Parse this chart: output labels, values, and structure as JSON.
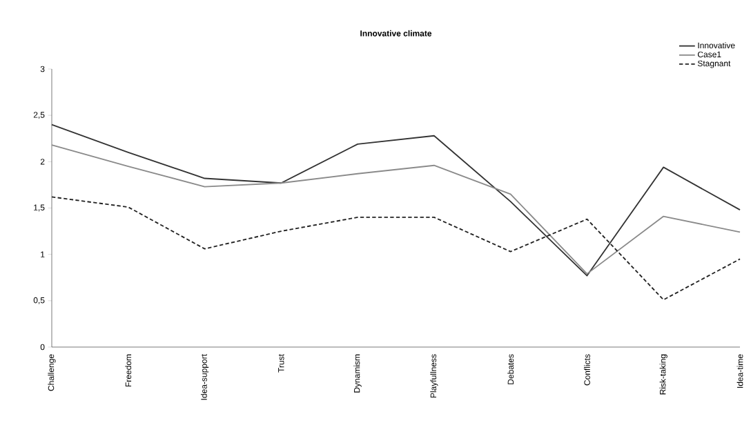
{
  "chart_data": {
    "type": "line",
    "title": "Innovative climate",
    "categories": [
      "Challenge",
      "Freedom",
      "Idea-support",
      "Trust",
      "Dynamism",
      "Playfullness",
      "Debates",
      "Conflicts",
      "Risk-taking",
      "Idea-time"
    ],
    "series": [
      {
        "name": "Innovative",
        "color": "#333333",
        "line_style": "solid",
        "values": [
          2.4,
          2.1,
          1.82,
          1.77,
          2.19,
          2.28,
          1.57,
          0.77,
          1.94,
          1.48
        ]
      },
      {
        "name": "Case1",
        "color": "#8a8a8a",
        "line_style": "solid",
        "values": [
          2.18,
          1.95,
          1.73,
          1.77,
          1.87,
          1.96,
          1.65,
          0.79,
          1.41,
          1.24
        ]
      },
      {
        "name": "Stagnant",
        "color": "#222222",
        "line_style": "dashed",
        "values": [
          1.62,
          1.51,
          1.06,
          1.25,
          1.4,
          1.4,
          1.03,
          1.38,
          0.51,
          0.95
        ]
      }
    ],
    "ylim": [
      0,
      3
    ],
    "yticks": [
      0,
      {
        "value": 0.5,
        "label": "0,5"
      },
      1,
      {
        "value": 1.5,
        "label": "1,5"
      },
      2,
      {
        "value": 2.5,
        "label": "2,5"
      },
      3
    ],
    "grid": false,
    "legend": "top right",
    "marker": "none"
  }
}
